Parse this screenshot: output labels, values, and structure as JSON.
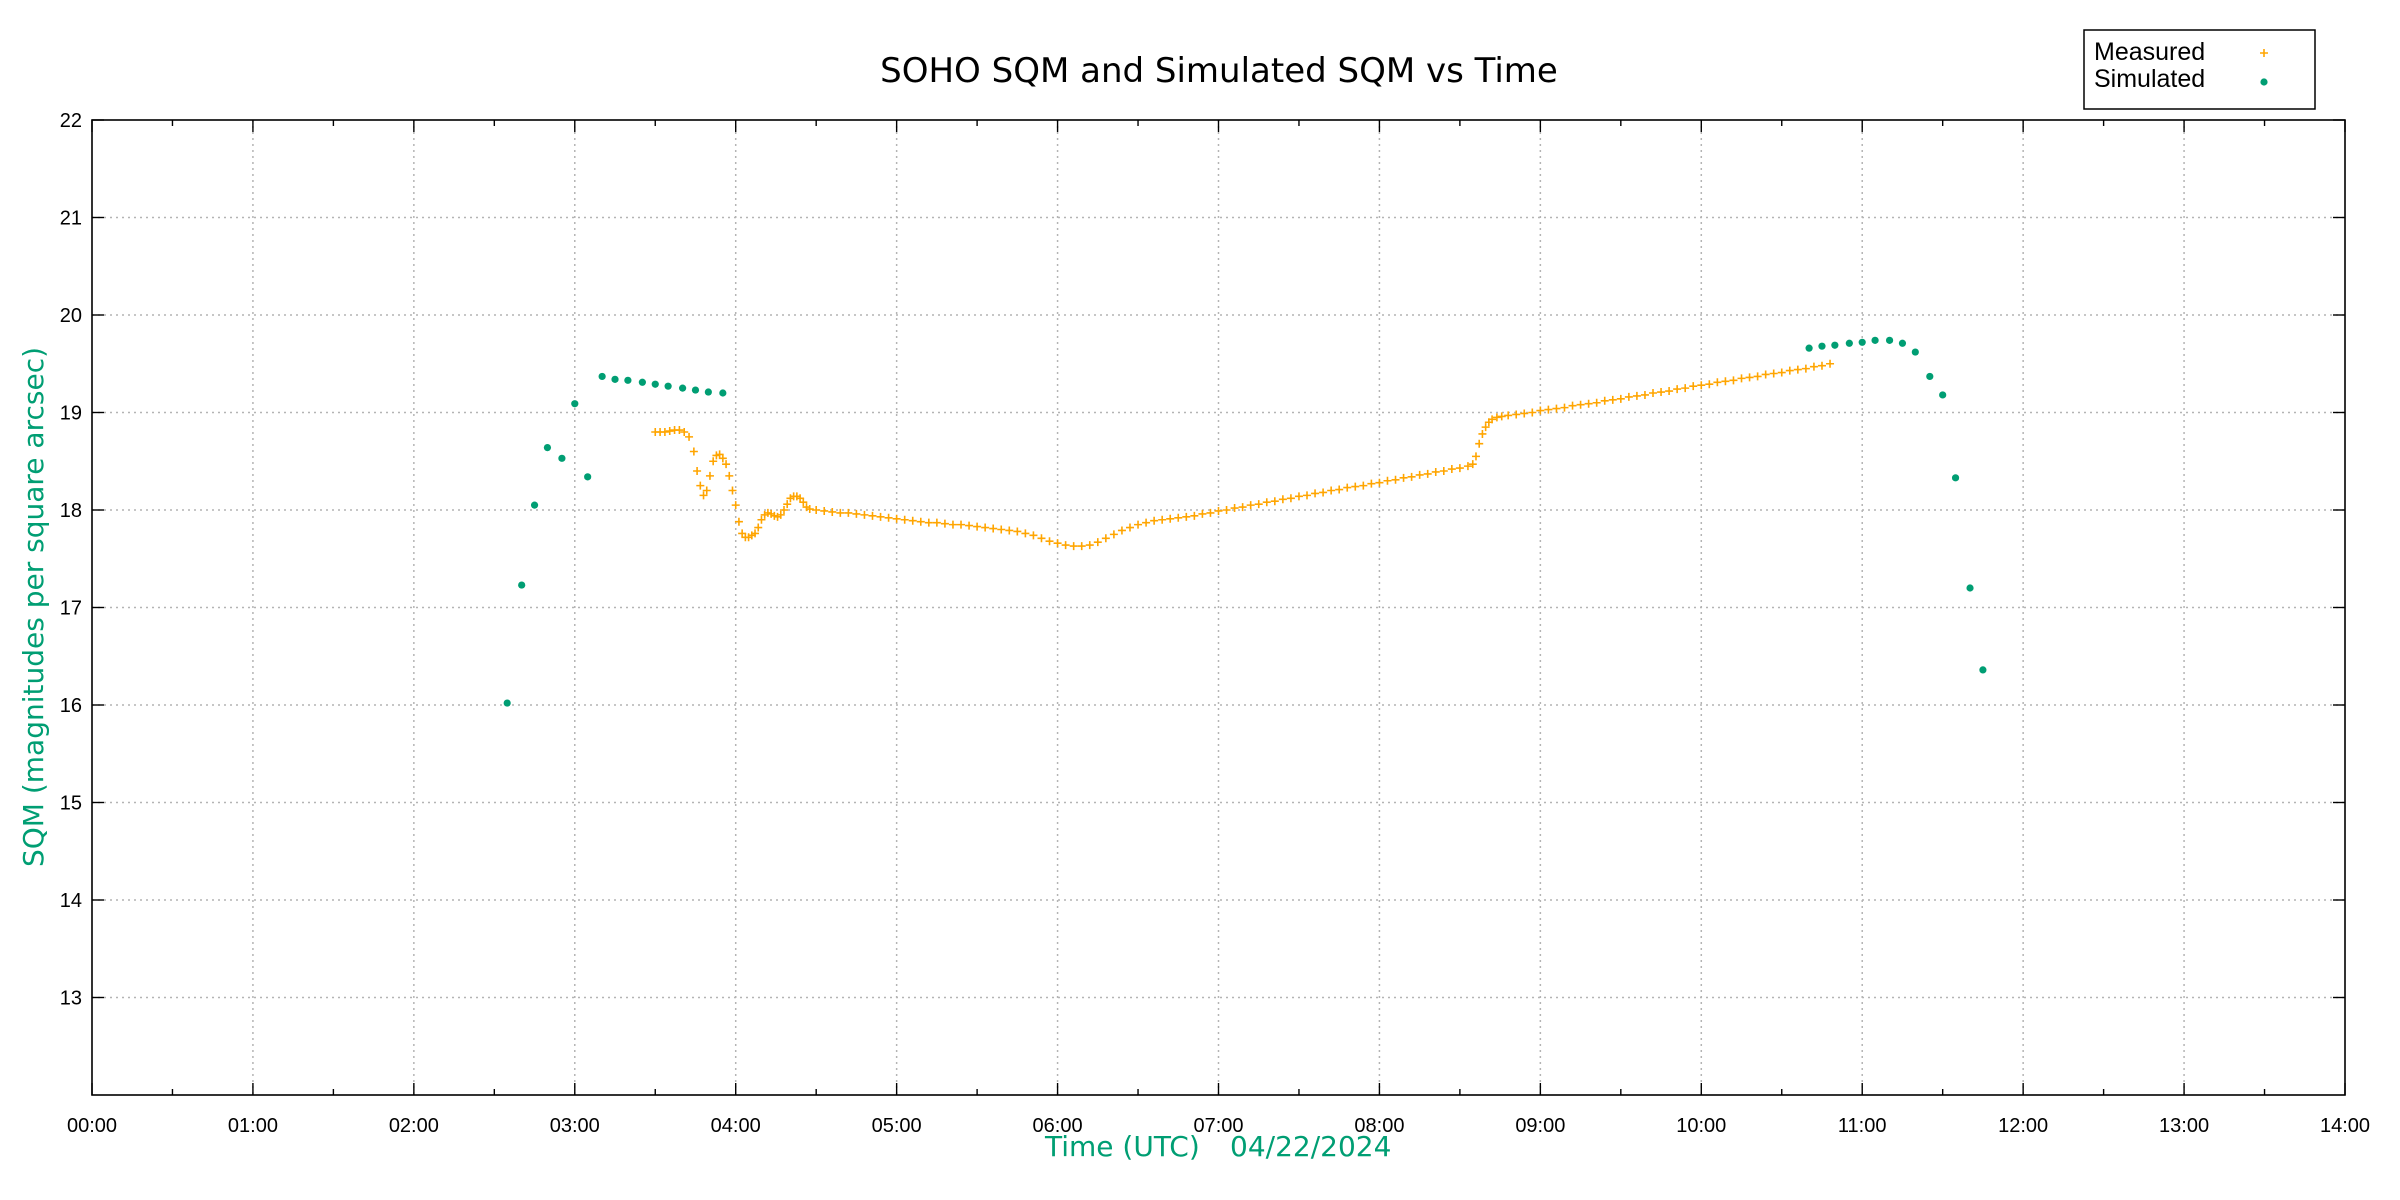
{
  "chart_data": {
    "type": "scatter",
    "title": "SOHO SQM and Simulated SQM vs Time",
    "xlabel": "Time (UTC)",
    "xlabel_date": "04/22/2024",
    "ylabel": "SQM (magnitudes per square arcsec)",
    "x_unit": "hours UTC",
    "xlim": [
      0,
      14
    ],
    "ylim": [
      12,
      22
    ],
    "x_ticks": [
      {
        "value": 0,
        "label": "00:00"
      },
      {
        "value": 1,
        "label": "01:00"
      },
      {
        "value": 2,
        "label": "02:00"
      },
      {
        "value": 3,
        "label": "03:00"
      },
      {
        "value": 4,
        "label": "04:00"
      },
      {
        "value": 5,
        "label": "05:00"
      },
      {
        "value": 6,
        "label": "06:00"
      },
      {
        "value": 7,
        "label": "07:00"
      },
      {
        "value": 8,
        "label": "08:00"
      },
      {
        "value": 9,
        "label": "09:00"
      },
      {
        "value": 10,
        "label": "10:00"
      },
      {
        "value": 11,
        "label": "11:00"
      },
      {
        "value": 12,
        "label": "12:00"
      },
      {
        "value": 13,
        "label": "13:00"
      },
      {
        "value": 14,
        "label": "14:00"
      }
    ],
    "y_ticks": [
      {
        "value": 13,
        "label": "13"
      },
      {
        "value": 14,
        "label": "14"
      },
      {
        "value": 15,
        "label": "15"
      },
      {
        "value": 16,
        "label": "16"
      },
      {
        "value": 17,
        "label": "17"
      },
      {
        "value": 18,
        "label": "18"
      },
      {
        "value": 19,
        "label": "19"
      },
      {
        "value": 20,
        "label": "20"
      },
      {
        "value": 21,
        "label": "21"
      },
      {
        "value": 22,
        "label": "22"
      }
    ],
    "grid": true,
    "legend_position": "top-right",
    "series": [
      {
        "name": "Measured",
        "marker": "plus",
        "color": "#ffa500",
        "points": [
          [
            3.5,
            18.8
          ],
          [
            3.53,
            18.8
          ],
          [
            3.56,
            18.8
          ],
          [
            3.59,
            18.81
          ],
          [
            3.62,
            18.82
          ],
          [
            3.65,
            18.82
          ],
          [
            3.68,
            18.8
          ],
          [
            3.71,
            18.75
          ],
          [
            3.74,
            18.6
          ],
          [
            3.76,
            18.4
          ],
          [
            3.78,
            18.25
          ],
          [
            3.8,
            18.15
          ],
          [
            3.82,
            18.2
          ],
          [
            3.84,
            18.35
          ],
          [
            3.86,
            18.5
          ],
          [
            3.88,
            18.56
          ],
          [
            3.9,
            18.57
          ],
          [
            3.92,
            18.53
          ],
          [
            3.94,
            18.47
          ],
          [
            3.96,
            18.35
          ],
          [
            3.98,
            18.2
          ],
          [
            4.0,
            18.05
          ],
          [
            4.02,
            17.88
          ],
          [
            4.04,
            17.76
          ],
          [
            4.06,
            17.72
          ],
          [
            4.08,
            17.72
          ],
          [
            4.1,
            17.74
          ],
          [
            4.12,
            17.76
          ],
          [
            4.14,
            17.82
          ],
          [
            4.16,
            17.9
          ],
          [
            4.18,
            17.95
          ],
          [
            4.2,
            17.97
          ],
          [
            4.22,
            17.96
          ],
          [
            4.24,
            17.94
          ],
          [
            4.26,
            17.93
          ],
          [
            4.28,
            17.95
          ],
          [
            4.3,
            18.0
          ],
          [
            4.32,
            18.06
          ],
          [
            4.34,
            18.12
          ],
          [
            4.36,
            18.14
          ],
          [
            4.38,
            18.14
          ],
          [
            4.4,
            18.12
          ],
          [
            4.42,
            18.08
          ],
          [
            4.44,
            18.03
          ],
          [
            4.46,
            18.01
          ],
          [
            4.5,
            18.0
          ],
          [
            4.55,
            17.99
          ],
          [
            4.6,
            17.98
          ],
          [
            4.65,
            17.97
          ],
          [
            4.7,
            17.97
          ],
          [
            4.75,
            17.96
          ],
          [
            4.8,
            17.95
          ],
          [
            4.85,
            17.94
          ],
          [
            4.9,
            17.93
          ],
          [
            4.95,
            17.92
          ],
          [
            5.0,
            17.91
          ],
          [
            5.05,
            17.9
          ],
          [
            5.1,
            17.89
          ],
          [
            5.15,
            17.88
          ],
          [
            5.2,
            17.87
          ],
          [
            5.25,
            17.87
          ],
          [
            5.3,
            17.86
          ],
          [
            5.35,
            17.85
          ],
          [
            5.4,
            17.85
          ],
          [
            5.45,
            17.84
          ],
          [
            5.5,
            17.83
          ],
          [
            5.55,
            17.82
          ],
          [
            5.6,
            17.81
          ],
          [
            5.65,
            17.8
          ],
          [
            5.7,
            17.79
          ],
          [
            5.75,
            17.78
          ],
          [
            5.8,
            17.76
          ],
          [
            5.85,
            17.74
          ],
          [
            5.9,
            17.71
          ],
          [
            5.95,
            17.68
          ],
          [
            6.0,
            17.66
          ],
          [
            6.05,
            17.64
          ],
          [
            6.1,
            17.63
          ],
          [
            6.15,
            17.63
          ],
          [
            6.2,
            17.64
          ],
          [
            6.25,
            17.67
          ],
          [
            6.3,
            17.71
          ],
          [
            6.35,
            17.75
          ],
          [
            6.4,
            17.79
          ],
          [
            6.45,
            17.82
          ],
          [
            6.5,
            17.85
          ],
          [
            6.55,
            17.87
          ],
          [
            6.6,
            17.89
          ],
          [
            6.65,
            17.9
          ],
          [
            6.7,
            17.91
          ],
          [
            6.75,
            17.92
          ],
          [
            6.8,
            17.93
          ],
          [
            6.85,
            17.94
          ],
          [
            6.9,
            17.96
          ],
          [
            6.95,
            17.97
          ],
          [
            7.0,
            17.99
          ],
          [
            7.05,
            18.0
          ],
          [
            7.1,
            18.02
          ],
          [
            7.15,
            18.03
          ],
          [
            7.2,
            18.05
          ],
          [
            7.25,
            18.06
          ],
          [
            7.3,
            18.08
          ],
          [
            7.35,
            18.09
          ],
          [
            7.4,
            18.11
          ],
          [
            7.45,
            18.12
          ],
          [
            7.5,
            18.14
          ],
          [
            7.55,
            18.15
          ],
          [
            7.6,
            18.17
          ],
          [
            7.65,
            18.18
          ],
          [
            7.7,
            18.2
          ],
          [
            7.75,
            18.21
          ],
          [
            7.8,
            18.23
          ],
          [
            7.85,
            18.24
          ],
          [
            7.9,
            18.25
          ],
          [
            7.95,
            18.27
          ],
          [
            8.0,
            18.28
          ],
          [
            8.05,
            18.3
          ],
          [
            8.1,
            18.31
          ],
          [
            8.15,
            18.33
          ],
          [
            8.2,
            18.34
          ],
          [
            8.25,
            18.36
          ],
          [
            8.3,
            18.37
          ],
          [
            8.35,
            18.39
          ],
          [
            8.4,
            18.4
          ],
          [
            8.45,
            18.42
          ],
          [
            8.5,
            18.43
          ],
          [
            8.55,
            18.45
          ],
          [
            8.58,
            18.47
          ],
          [
            8.6,
            18.55
          ],
          [
            8.62,
            18.68
          ],
          [
            8.64,
            18.78
          ],
          [
            8.66,
            18.85
          ],
          [
            8.68,
            18.9
          ],
          [
            8.7,
            18.93
          ],
          [
            8.73,
            18.95
          ],
          [
            8.76,
            18.96
          ],
          [
            8.8,
            18.97
          ],
          [
            8.85,
            18.98
          ],
          [
            8.9,
            18.99
          ],
          [
            8.95,
            19.0
          ],
          [
            9.0,
            19.02
          ],
          [
            9.05,
            19.03
          ],
          [
            9.1,
            19.04
          ],
          [
            9.15,
            19.05
          ],
          [
            9.2,
            19.07
          ],
          [
            9.25,
            19.08
          ],
          [
            9.3,
            19.09
          ],
          [
            9.35,
            19.1
          ],
          [
            9.4,
            19.12
          ],
          [
            9.45,
            19.13
          ],
          [
            9.5,
            19.14
          ],
          [
            9.55,
            19.16
          ],
          [
            9.6,
            19.17
          ],
          [
            9.65,
            19.18
          ],
          [
            9.7,
            19.2
          ],
          [
            9.75,
            19.21
          ],
          [
            9.8,
            19.22
          ],
          [
            9.85,
            19.24
          ],
          [
            9.9,
            19.25
          ],
          [
            9.95,
            19.27
          ],
          [
            10.0,
            19.28
          ],
          [
            10.05,
            19.29
          ],
          [
            10.1,
            19.31
          ],
          [
            10.15,
            19.32
          ],
          [
            10.2,
            19.33
          ],
          [
            10.25,
            19.35
          ],
          [
            10.3,
            19.36
          ],
          [
            10.35,
            19.37
          ],
          [
            10.4,
            19.39
          ],
          [
            10.45,
            19.4
          ],
          [
            10.5,
            19.41
          ],
          [
            10.55,
            19.43
          ],
          [
            10.6,
            19.44
          ],
          [
            10.65,
            19.45
          ],
          [
            10.7,
            19.47
          ],
          [
            10.75,
            19.48
          ],
          [
            10.8,
            19.5
          ]
        ]
      },
      {
        "name": "Simulated",
        "marker": "dot",
        "color": "#009e73",
        "points": [
          [
            2.58,
            16.02
          ],
          [
            2.67,
            17.23
          ],
          [
            2.75,
            18.05
          ],
          [
            2.83,
            18.64
          ],
          [
            2.92,
            18.53
          ],
          [
            3.0,
            19.09
          ],
          [
            3.08,
            18.34
          ],
          [
            3.17,
            19.37
          ],
          [
            3.25,
            19.34
          ],
          [
            3.33,
            19.33
          ],
          [
            3.42,
            19.31
          ],
          [
            3.5,
            19.29
          ],
          [
            3.58,
            19.27
          ],
          [
            3.67,
            19.25
          ],
          [
            3.75,
            19.23
          ],
          [
            3.83,
            19.21
          ],
          [
            3.92,
            19.2
          ],
          [
            10.67,
            19.66
          ],
          [
            10.75,
            19.68
          ],
          [
            10.83,
            19.69
          ],
          [
            10.92,
            19.71
          ],
          [
            11.0,
            19.72
          ],
          [
            11.08,
            19.74
          ],
          [
            11.17,
            19.74
          ],
          [
            11.25,
            19.71
          ],
          [
            11.33,
            19.62
          ],
          [
            11.42,
            19.37
          ],
          [
            11.5,
            19.18
          ],
          [
            11.58,
            18.33
          ],
          [
            11.67,
            17.2
          ],
          [
            11.75,
            16.36
          ]
        ]
      }
    ]
  }
}
